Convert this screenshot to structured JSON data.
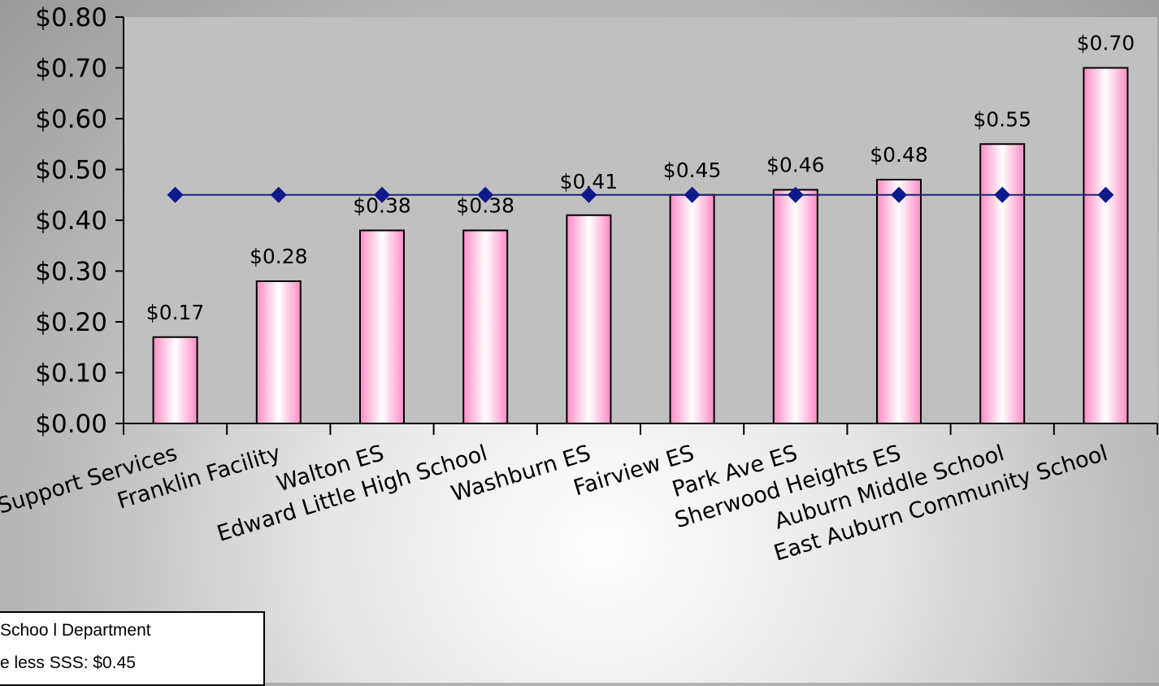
{
  "chart_data": {
    "type": "bar",
    "categories": [
      "Support Services",
      "Franklin Facility",
      "Walton ES",
      "Edward Little High School",
      "Washburn ES",
      "Fairview ES",
      "Park Ave ES",
      "Sherwood Heights ES",
      "Auburn Middle School",
      "East Auburn Community School"
    ],
    "series": [
      {
        "type": "bar",
        "values": [
          0.17,
          0.28,
          0.38,
          0.38,
          0.41,
          0.45,
          0.46,
          0.48,
          0.55,
          0.7
        ]
      },
      {
        "type": "line",
        "values": [
          0.45,
          0.45,
          0.45,
          0.45,
          0.45,
          0.45,
          0.45,
          0.45,
          0.45,
          0.45
        ]
      }
    ],
    "data_labels": [
      "$0.17",
      "$0.28",
      "$0.38",
      "$0.38",
      "$0.41",
      "$0.45",
      "$0.46",
      "$0.48",
      "$0.55",
      "$0.70"
    ],
    "y_ticks": [
      "$0.00",
      "$0.10",
      "$0.20",
      "$0.30",
      "$0.40",
      "$0.50",
      "$0.60",
      "$0.70",
      "$0.80"
    ],
    "ylim": [
      0,
      0.8
    ],
    "title": "",
    "xlabel": "",
    "ylabel": "",
    "grid": false,
    "colors": {
      "bar_fill": "#ff8cc6",
      "bar_highlight": "#ffffff",
      "line": "#1a237e",
      "marker": "#0d1a8c"
    }
  },
  "legend": {
    "line1": "Schoo l Department",
    "line2": "e less SSS: $0.45"
  }
}
